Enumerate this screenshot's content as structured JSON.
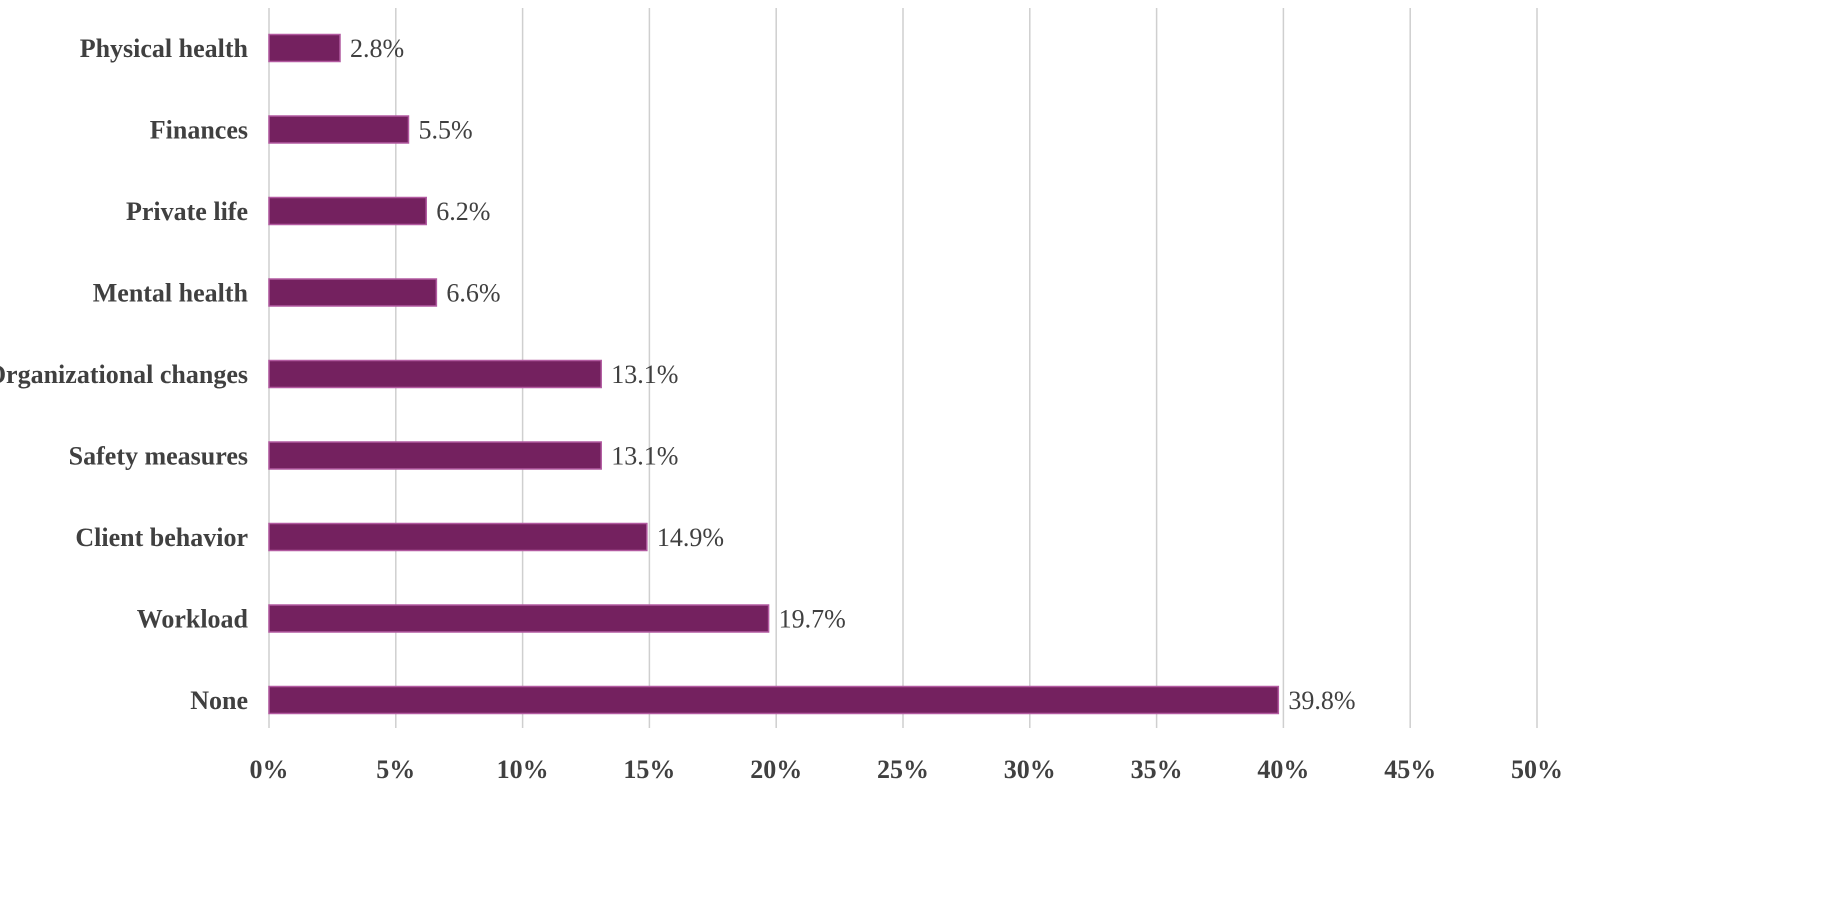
{
  "chart_data": {
    "type": "bar",
    "orientation": "horizontal",
    "categories": [
      "Physical health",
      "Finances",
      "Private life",
      "Mental health",
      "Organizational changes",
      "Safety measures",
      "Client behavior",
      "Workload",
      "None"
    ],
    "values": [
      2.8,
      5.5,
      6.2,
      6.6,
      13.1,
      13.1,
      14.9,
      19.7,
      39.8
    ],
    "data_labels": [
      "2.8%",
      "5.5%",
      "6.2%",
      "6.6%",
      "13.1%",
      "13.1%",
      "14.9%",
      "19.7%",
      "39.8%"
    ],
    "x_ticks": [
      0,
      5,
      10,
      15,
      20,
      25,
      30,
      35,
      40,
      45,
      50
    ],
    "x_tick_labels": [
      "0%",
      "5%",
      "10%",
      "15%",
      "20%",
      "25%",
      "30%",
      "35%",
      "40%",
      "45%",
      "50%"
    ],
    "xlim": [
      0,
      50
    ],
    "title": "",
    "xlabel": "",
    "ylabel": "",
    "grid": "vertical",
    "legend": "none",
    "colors": {
      "bar_fill": "#74215f",
      "bar_stroke": "#b25aa0",
      "gridline": "#cfcfcf",
      "text": "#404040"
    }
  }
}
